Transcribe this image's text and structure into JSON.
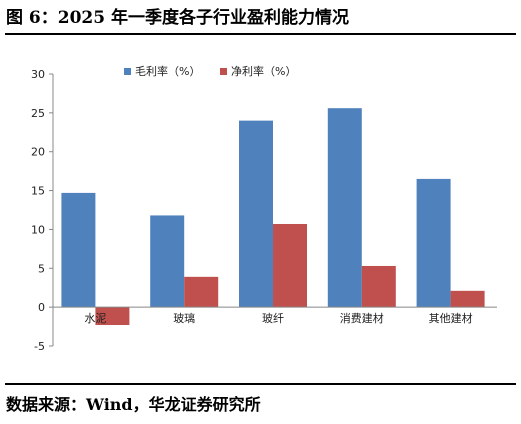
{
  "figure": {
    "title": "图 6：2025 年一季度各子行业盈利能力情况",
    "source": "数据来源：Wind，华龙证券研究所"
  },
  "chart_data": {
    "type": "bar",
    "categories": [
      "水泥",
      "玻璃",
      "玻纤",
      "消费建材",
      "其他建材"
    ],
    "series": [
      {
        "name": "毛利率（%）",
        "color": "#4f81bd",
        "values": [
          14.7,
          11.8,
          24.0,
          25.6,
          16.5
        ]
      },
      {
        "name": "净利率（%）",
        "color": "#c0504d",
        "values": [
          -2.3,
          3.9,
          10.7,
          5.3,
          2.1
        ]
      }
    ],
    "ylim": [
      -5,
      30
    ],
    "yticks": [
      -5,
      0,
      5,
      10,
      15,
      20,
      25,
      30
    ],
    "grid": false,
    "legend_position": "top-left"
  }
}
